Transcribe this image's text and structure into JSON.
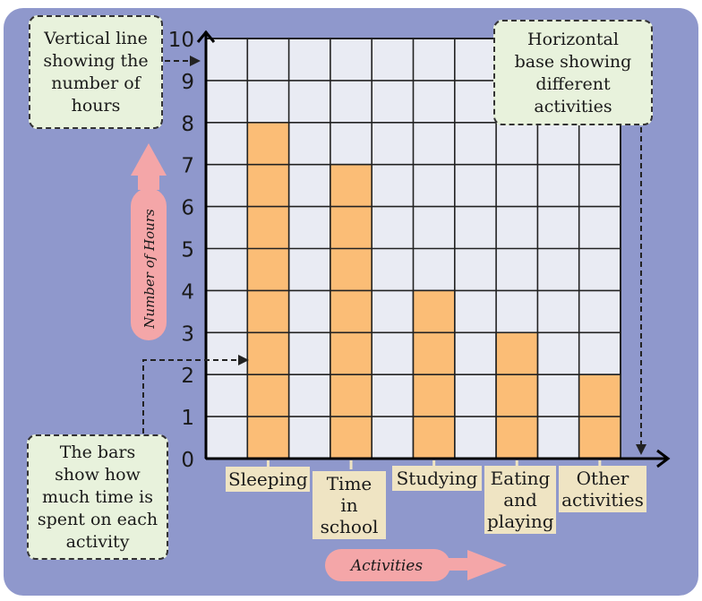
{
  "chart_data": {
    "type": "bar",
    "categories": [
      "Sleeping",
      "Time in school",
      "Studying",
      "Eating and playing",
      "Other activities"
    ],
    "category_lines": [
      [
        "Sleeping"
      ],
      [
        "Time in",
        "school"
      ],
      [
        "Studying"
      ],
      [
        "Eating",
        "and",
        "playing"
      ],
      [
        "Other",
        "activities"
      ]
    ],
    "values": [
      8,
      7,
      4,
      3,
      2
    ],
    "ylim": [
      0,
      10
    ],
    "yticks": [
      "0",
      "1",
      "2",
      "3",
      "4",
      "5",
      "6",
      "7",
      "8",
      "9",
      "10"
    ],
    "xlabel": "Activities",
    "ylabel": "Number of Hours",
    "grid": true,
    "colors": {
      "bar": "#fbbd76",
      "grid_bg": "#e9ebf3",
      "panel": "#8f98cc",
      "arrow": "#f4a6a8"
    }
  },
  "callouts": {
    "vertical": [
      "Vertical line",
      "showing the",
      "number of",
      "hours"
    ],
    "horizontal": [
      "Horizontal",
      "base showing",
      "different",
      "activities"
    ],
    "bars": [
      "The bars",
      "show how",
      "much time is",
      "spent on each",
      "activity"
    ]
  }
}
